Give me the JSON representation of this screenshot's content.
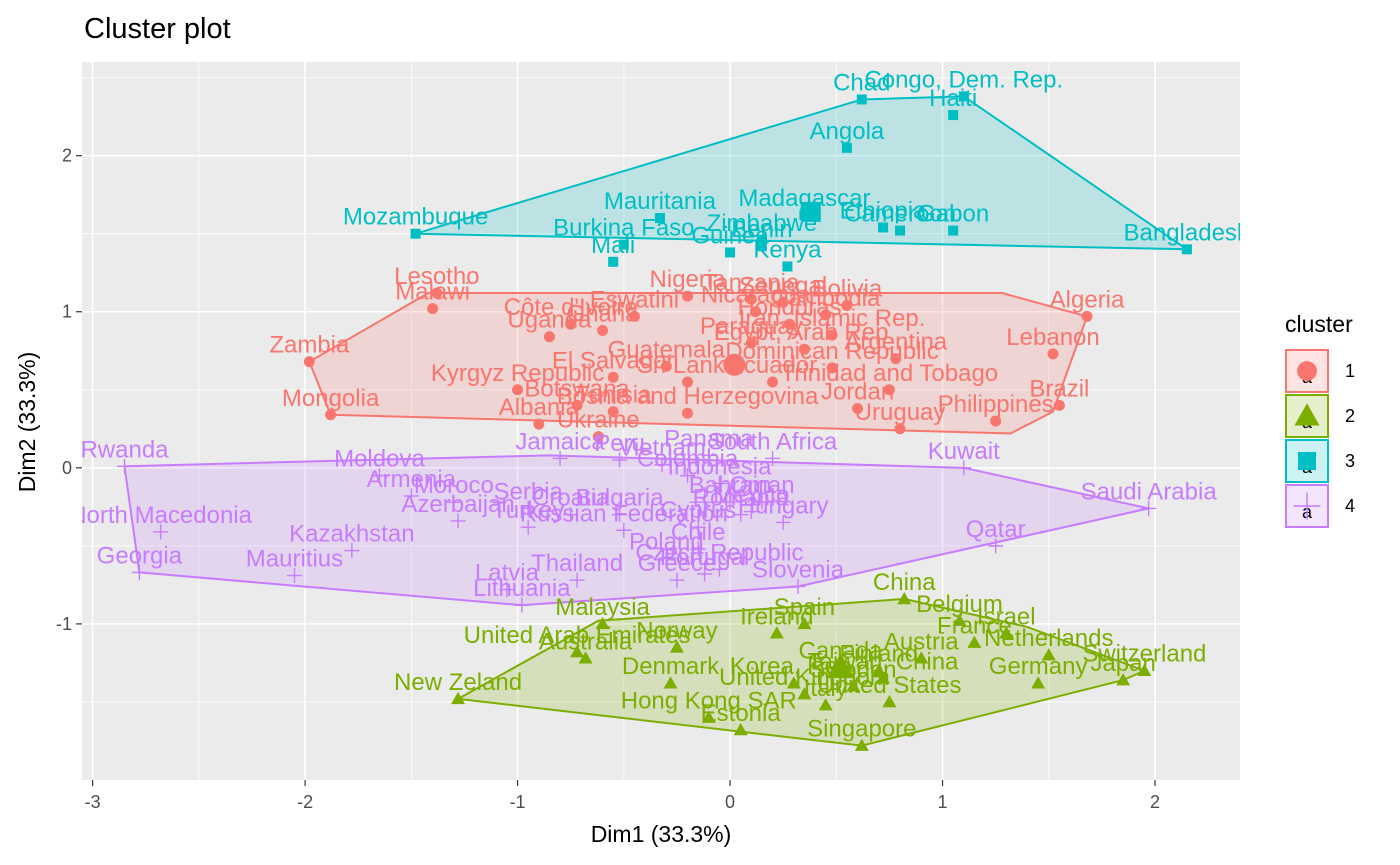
{
  "chart_data": {
    "type": "scatter",
    "title": "Cluster plot",
    "xlabel": "Dim1 (33.3%)",
    "ylabel": "Dim2 (33.3%)",
    "xlim": [
      -3.05,
      2.4
    ],
    "ylim": [
      -2.0,
      2.6
    ],
    "xticks": [
      -3,
      -2,
      -1,
      0,
      1,
      2
    ],
    "yticks": [
      -1,
      0,
      1,
      2
    ],
    "grid": true,
    "legend": {
      "title": "cluster",
      "placement": "right",
      "entries": [
        "1",
        "2",
        "3",
        "4"
      ]
    },
    "series": [
      {
        "name": "1",
        "color": "#F8766D",
        "shape": "circle",
        "centroid": [
          0.02,
          0.66
        ],
        "hull": [
          [
            -1.98,
            0.68
          ],
          [
            -1.88,
            0.34
          ],
          [
            1.32,
            0.22
          ],
          [
            1.52,
            0.36
          ],
          [
            1.68,
            0.97
          ],
          [
            1.28,
            1.12
          ],
          [
            -1.42,
            1.12
          ]
        ],
        "points": [
          {
            "label": "Lesotho",
            "x": -1.38,
            "y": 1.12
          },
          {
            "label": "Malawi",
            "x": -1.4,
            "y": 1.02
          },
          {
            "label": "Côte d'Ivoire",
            "x": -0.75,
            "y": 0.92
          },
          {
            "label": "Eswatini",
            "x": -0.45,
            "y": 0.97
          },
          {
            "label": "Ghana",
            "x": -0.6,
            "y": 0.88
          },
          {
            "label": "Zambia",
            "x": -1.98,
            "y": 0.68
          },
          {
            "label": "Mongolia",
            "x": -1.88,
            "y": 0.34
          },
          {
            "label": "Nigeria",
            "x": -0.2,
            "y": 1.1
          },
          {
            "label": "Tanzania",
            "x": 0.1,
            "y": 1.08
          },
          {
            "label": "Senegal",
            "x": 0.25,
            "y": 1.06
          },
          {
            "label": "Bolivia",
            "x": 0.55,
            "y": 1.04
          },
          {
            "label": "Nicaragua",
            "x": 0.12,
            "y": 1.0
          },
          {
            "label": "Cambodia",
            "x": 0.45,
            "y": 0.98
          },
          {
            "label": "Honduras",
            "x": 0.28,
            "y": 0.92
          },
          {
            "label": "Uganda",
            "x": -0.85,
            "y": 0.84
          },
          {
            "label": "Iran, Islamic Rep.",
            "x": 0.48,
            "y": 0.85
          },
          {
            "label": "Paraguay",
            "x": 0.1,
            "y": 0.8
          },
          {
            "label": "Egypt, Arab Rep.",
            "x": 0.35,
            "y": 0.76
          },
          {
            "label": "Guatemala",
            "x": -0.3,
            "y": 0.65
          },
          {
            "label": "El Salvador",
            "x": -0.55,
            "y": 0.58
          },
          {
            "label": "Sri Lanka",
            "x": -0.2,
            "y": 0.55
          },
          {
            "label": "Kyrgyz Republic",
            "x": -1.0,
            "y": 0.5
          },
          {
            "label": "Dominican Republic",
            "x": 0.48,
            "y": 0.64
          },
          {
            "label": "Trinidad and Tobago",
            "x": 0.75,
            "y": 0.5
          },
          {
            "label": "Argentina",
            "x": 0.78,
            "y": 0.7
          },
          {
            "label": "Algeria",
            "x": 1.68,
            "y": 0.97
          },
          {
            "label": "Lebanon",
            "x": 1.52,
            "y": 0.73
          },
          {
            "label": "Brazil",
            "x": 1.55,
            "y": 0.4
          },
          {
            "label": "Philippines",
            "x": 1.25,
            "y": 0.3
          },
          {
            "label": "Jordan",
            "x": 0.6,
            "y": 0.38
          },
          {
            "label": "Uruguay",
            "x": 0.8,
            "y": 0.25
          },
          {
            "label": "Bosnia and Herzegovina",
            "x": -0.2,
            "y": 0.35
          },
          {
            "label": "Ecuador",
            "x": 0.2,
            "y": 0.55
          },
          {
            "label": "Botswana",
            "x": -0.72,
            "y": 0.4
          },
          {
            "label": "Albania",
            "x": -0.9,
            "y": 0.28
          },
          {
            "label": "Tunisia",
            "x": -0.55,
            "y": 0.36
          },
          {
            "label": "Ukraine",
            "x": -0.62,
            "y": 0.2
          }
        ]
      },
      {
        "name": "2",
        "color": "#7CAE00",
        "shape": "triangle",
        "centroid": [
          0.52,
          -1.28
        ],
        "hull": [
          [
            -1.28,
            -1.48
          ],
          [
            0.62,
            -1.78
          ],
          [
            1.85,
            -1.36
          ],
          [
            1.95,
            -1.3
          ],
          [
            1.4,
            -1.02
          ],
          [
            0.82,
            -0.84
          ],
          [
            -0.62,
            -0.98
          ]
        ],
        "points": [
          {
            "label": "New Zeland",
            "x": -1.28,
            "y": -1.48
          },
          {
            "label": "United Arab Emirates",
            "x": -0.72,
            "y": -1.18
          },
          {
            "label": "Australia",
            "x": -0.68,
            "y": -1.22
          },
          {
            "label": "Malaysia",
            "x": -0.6,
            "y": -1.0
          },
          {
            "label": "Norway",
            "x": -0.25,
            "y": -1.15
          },
          {
            "label": "Denmark",
            "x": -0.28,
            "y": -1.38
          },
          {
            "label": "Hong Kong SAR",
            "x": -0.1,
            "y": -1.6
          },
          {
            "label": "Ireland",
            "x": 0.22,
            "y": -1.06
          },
          {
            "label": "Spain",
            "x": 0.35,
            "y": -1.0
          },
          {
            "label": "China",
            "x": 0.82,
            "y": -0.84
          },
          {
            "label": "Belgium",
            "x": 1.08,
            "y": -0.98
          },
          {
            "label": "Israel",
            "x": 1.3,
            "y": -1.06
          },
          {
            "label": "France",
            "x": 1.15,
            "y": -1.12
          },
          {
            "label": "Austria",
            "x": 0.9,
            "y": -1.22
          },
          {
            "label": "Canada",
            "x": 0.52,
            "y": -1.28
          },
          {
            "label": "Finland",
            "x": 0.7,
            "y": -1.3
          },
          {
            "label": "Taiwan, China",
            "x": 0.72,
            "y": -1.35
          },
          {
            "label": "Korea, Rep.",
            "x": 0.3,
            "y": -1.38
          },
          {
            "label": "Sweden",
            "x": 0.58,
            "y": -1.4
          },
          {
            "label": "United Kingdom",
            "x": 0.35,
            "y": -1.45
          },
          {
            "label": "United States",
            "x": 0.75,
            "y": -1.5
          },
          {
            "label": "Singapore",
            "x": 0.62,
            "y": -1.78
          },
          {
            "label": "Netherlands",
            "x": 1.5,
            "y": -1.2
          },
          {
            "label": "Germany",
            "x": 1.45,
            "y": -1.38
          },
          {
            "label": "Switzerland",
            "x": 1.95,
            "y": -1.3
          },
          {
            "label": "Japan",
            "x": 1.85,
            "y": -1.36
          },
          {
            "label": "Estonia",
            "x": 0.05,
            "y": -1.68
          },
          {
            "label": "Italy",
            "x": 0.45,
            "y": -1.52
          }
        ]
      },
      {
        "name": "3",
        "color": "#00BFC4",
        "shape": "square",
        "centroid": [
          0.38,
          1.64
        ],
        "hull": [
          [
            -1.48,
            1.5
          ],
          [
            2.15,
            1.4
          ],
          [
            1.1,
            2.38
          ],
          [
            0.62,
            2.36
          ]
        ],
        "points": [
          {
            "label": "Chad",
            "x": 0.62,
            "y": 2.36
          },
          {
            "label": "Congo, Dem. Rep.",
            "x": 1.1,
            "y": 2.38
          },
          {
            "label": "Haiti",
            "x": 1.05,
            "y": 2.26
          },
          {
            "label": "Angola",
            "x": 0.55,
            "y": 2.05
          },
          {
            "label": "Mozambuque",
            "x": -1.48,
            "y": 1.5
          },
          {
            "label": "Mauritania",
            "x": -0.33,
            "y": 1.6
          },
          {
            "label": "Madagascar",
            "x": 0.35,
            "y": 1.62
          },
          {
            "label": "Ethiopia",
            "x": 0.72,
            "y": 1.54
          },
          {
            "label": "Gabon",
            "x": 1.05,
            "y": 1.52
          },
          {
            "label": "Cameroon",
            "x": 0.8,
            "y": 1.52
          },
          {
            "label": "Burkina Faso",
            "x": -0.5,
            "y": 1.43
          },
          {
            "label": "Zimbabwe",
            "x": 0.15,
            "y": 1.46
          },
          {
            "label": "Mali",
            "x": -0.55,
            "y": 1.32
          },
          {
            "label": "Guinea",
            "x": 0.0,
            "y": 1.38
          },
          {
            "label": "Benin",
            "x": 0.15,
            "y": 1.42
          },
          {
            "label": "Bangladesh",
            "x": 2.15,
            "y": 1.4
          },
          {
            "label": "Kenya",
            "x": 0.27,
            "y": 1.29
          }
        ]
      },
      {
        "name": "4",
        "color": "#C77CFF",
        "shape": "cross",
        "centroid": [
          -0.12,
          -0.22
        ],
        "hull": [
          [
            -2.78,
            -0.67
          ],
          [
            -0.98,
            -0.88
          ],
          [
            0.32,
            -0.76
          ],
          [
            1.97,
            -0.26
          ],
          [
            1.1,
            0.0
          ],
          [
            -0.85,
            0.08
          ],
          [
            -2.85,
            0.01
          ]
        ],
        "points": [
          {
            "label": "Rwanda",
            "x": -2.85,
            "y": 0.01
          },
          {
            "label": "North Macedonia",
            "x": -2.68,
            "y": -0.41
          },
          {
            "label": "Georgia",
            "x": -2.78,
            "y": -0.67
          },
          {
            "label": "Mauritius",
            "x": -2.05,
            "y": -0.69
          },
          {
            "label": "Kazakhstan",
            "x": -1.78,
            "y": -0.53
          },
          {
            "label": "Moldova",
            "x": -1.65,
            "y": -0.05
          },
          {
            "label": "Armenia",
            "x": -1.5,
            "y": -0.18
          },
          {
            "label": "Moroco",
            "x": -1.3,
            "y": -0.22
          },
          {
            "label": "Azerbaijan",
            "x": -1.28,
            "y": -0.34
          },
          {
            "label": "Serbia",
            "x": -0.95,
            "y": -0.26
          },
          {
            "label": "Turkey",
            "x": -0.95,
            "y": -0.38
          },
          {
            "label": "Croatia",
            "x": -0.75,
            "y": -0.3
          },
          {
            "label": "Russian Federation",
            "x": -0.5,
            "y": -0.4
          },
          {
            "label": "Latvia",
            "x": -1.05,
            "y": -0.78
          },
          {
            "label": "Lithuania",
            "x": -0.98,
            "y": -0.88
          },
          {
            "label": "Thailand",
            "x": -0.72,
            "y": -0.72
          },
          {
            "label": "Jamaica",
            "x": -0.8,
            "y": 0.06
          },
          {
            "label": "Peru",
            "x": -0.52,
            "y": 0.05
          },
          {
            "label": "Vietnam",
            "x": -0.32,
            "y": 0.02
          },
          {
            "label": "Panama",
            "x": -0.1,
            "y": 0.08
          },
          {
            "label": "South Africa",
            "x": 0.2,
            "y": 0.06
          },
          {
            "label": "Colombia",
            "x": -0.2,
            "y": -0.05
          },
          {
            "label": "Indonesia",
            "x": -0.05,
            "y": -0.1
          },
          {
            "label": "Bulgaria",
            "x": -0.52,
            "y": -0.3
          },
          {
            "label": "Bahrain",
            "x": 0.0,
            "y": -0.22
          },
          {
            "label": "Cyprus",
            "x": -0.15,
            "y": -0.38
          },
          {
            "label": "Oman",
            "x": 0.15,
            "y": -0.22
          },
          {
            "label": "Romania",
            "x": 0.05,
            "y": -0.3
          },
          {
            "label": "Mexico",
            "x": 0.1,
            "y": -0.28
          },
          {
            "label": "Hungary",
            "x": 0.25,
            "y": -0.35
          },
          {
            "label": "Chile",
            "x": -0.15,
            "y": -0.52
          },
          {
            "label": "Poland",
            "x": -0.3,
            "y": -0.58
          },
          {
            "label": "Portugal",
            "x": -0.12,
            "y": -0.68
          },
          {
            "label": "Slovenia",
            "x": 0.32,
            "y": -0.76
          },
          {
            "label": "Kuwait",
            "x": 1.1,
            "y": 0.0
          },
          {
            "label": "Saudi Arabia",
            "x": 1.97,
            "y": -0.26
          },
          {
            "label": "Qatar",
            "x": 1.25,
            "y": -0.5
          },
          {
            "label": "Czech Republic",
            "x": -0.05,
            "y": -0.65
          },
          {
            "label": "Greece",
            "x": -0.25,
            "y": -0.72
          }
        ]
      }
    ]
  }
}
